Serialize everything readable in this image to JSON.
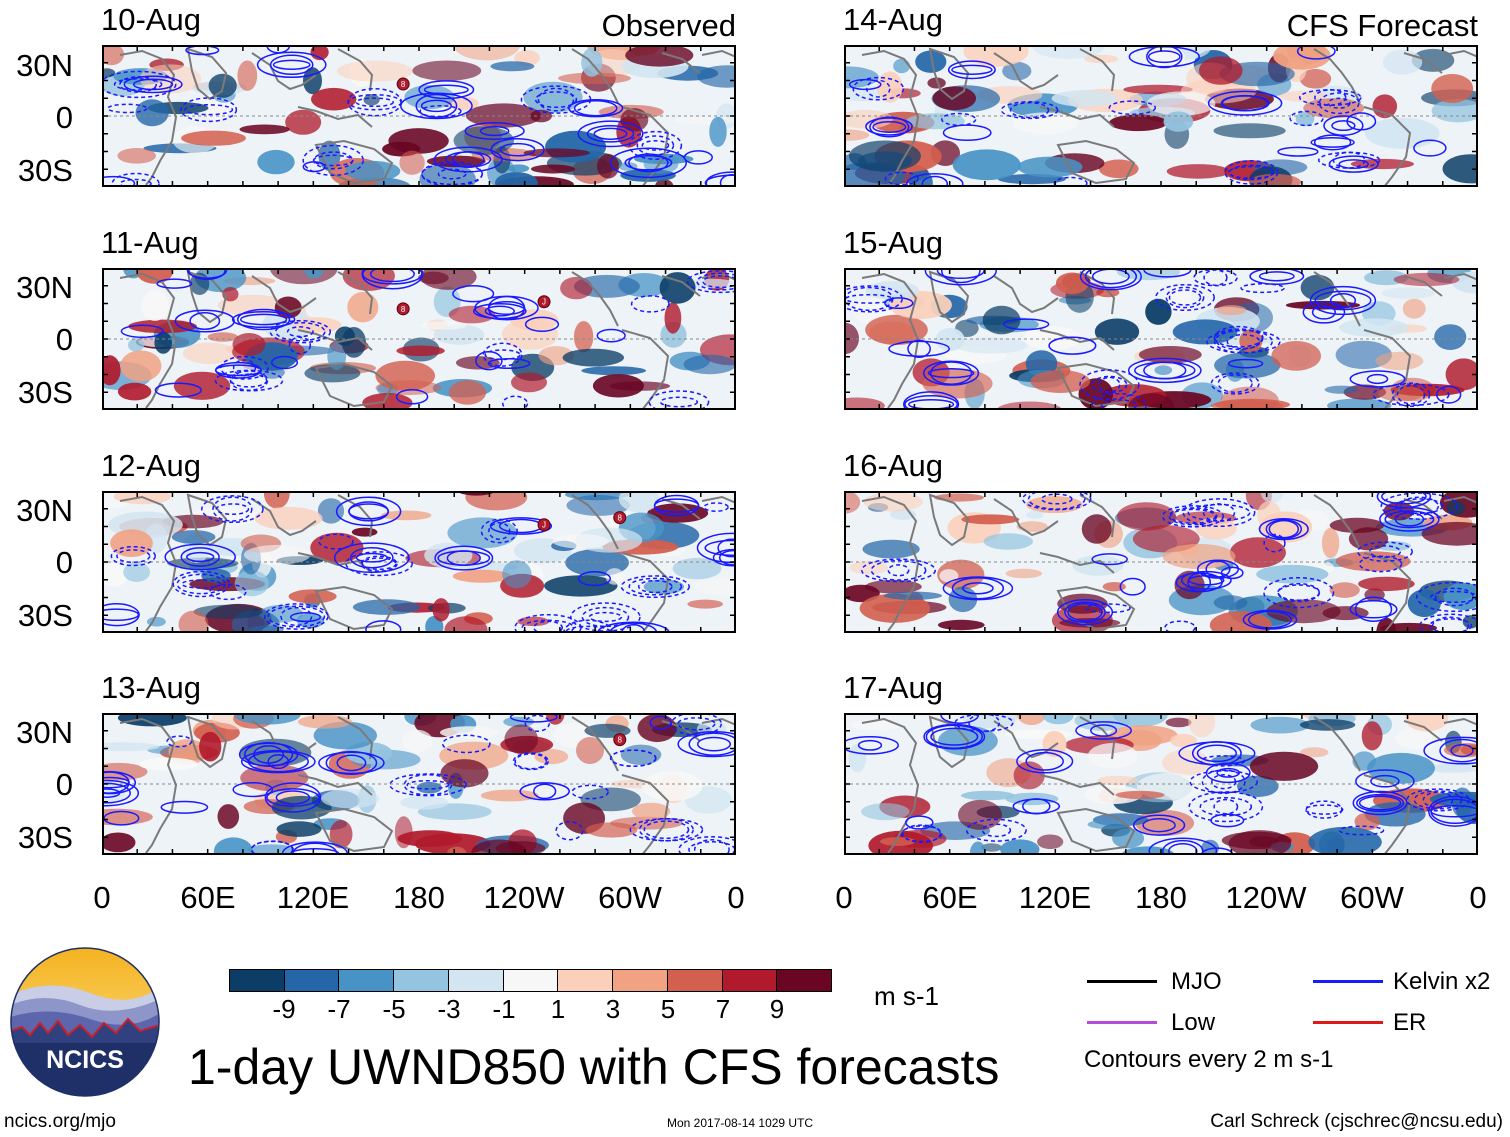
{
  "header": {
    "observed_label": "Observed",
    "forecast_label": "CFS Forecast"
  },
  "panels": [
    {
      "date": "10-Aug",
      "group": "observed",
      "storms": [
        {
          "label": "8",
          "lon_deg": 171,
          "lat_deg": 18
        }
      ]
    },
    {
      "date": "11-Aug",
      "group": "observed",
      "storms": [
        {
          "label": "8",
          "lon_deg": 171,
          "lat_deg": 17
        },
        {
          "label": "J",
          "lon_deg": 251,
          "lat_deg": 21
        }
      ]
    },
    {
      "date": "12-Aug",
      "group": "observed",
      "storms": [
        {
          "label": "J",
          "lon_deg": 251,
          "lat_deg": 21
        },
        {
          "label": "8",
          "lon_deg": 294,
          "lat_deg": 25
        }
      ]
    },
    {
      "date": "13-Aug",
      "group": "observed",
      "storms": [
        {
          "label": "8",
          "lon_deg": 294,
          "lat_deg": 25
        }
      ]
    },
    {
      "date": "14-Aug",
      "group": "forecast",
      "storms": []
    },
    {
      "date": "15-Aug",
      "group": "forecast",
      "storms": []
    },
    {
      "date": "16-Aug",
      "group": "forecast",
      "storms": []
    },
    {
      "date": "17-Aug",
      "group": "forecast",
      "storms": []
    }
  ],
  "axes": {
    "lat_labels": [
      "30N",
      "0",
      "30S"
    ],
    "lon_labels": [
      "0",
      "60E",
      "120E",
      "180",
      "120W",
      "60W",
      "0"
    ],
    "lat_range": [
      -40,
      40
    ],
    "lon_range": [
      0,
      360
    ]
  },
  "colorbar": {
    "tick_labels": [
      "-9",
      "-7",
      "-5",
      "-3",
      "-1",
      "1",
      "3",
      "5",
      "7",
      "9"
    ],
    "colors": [
      "#0b3d67",
      "#2466a8",
      "#4893c6",
      "#94c4df",
      "#d2e5f1",
      "#f7f7f7",
      "#fbd0bb",
      "#f0a283",
      "#d35f4f",
      "#b01a2c",
      "#6a0624"
    ],
    "units": "m s-1"
  },
  "legend": {
    "items": [
      {
        "label": "MJO",
        "color": "#000000"
      },
      {
        "label": "Kelvin x2",
        "color": "#1a1aff"
      },
      {
        "label": "Low",
        "color": "#b44dd6"
      },
      {
        "label": "ER",
        "color": "#e01818"
      }
    ],
    "contour_note": "Contours every 2 m s-1"
  },
  "logo": {
    "text": "NCICS"
  },
  "title": "1-day UWND850 with CFS forecasts",
  "footer": {
    "url": "ncics.org/mjo",
    "timestamp": "Mon 2017-08-14 1029 UTC",
    "author": "Carl Schreck (cjschrec@ncsu.edu)"
  }
}
